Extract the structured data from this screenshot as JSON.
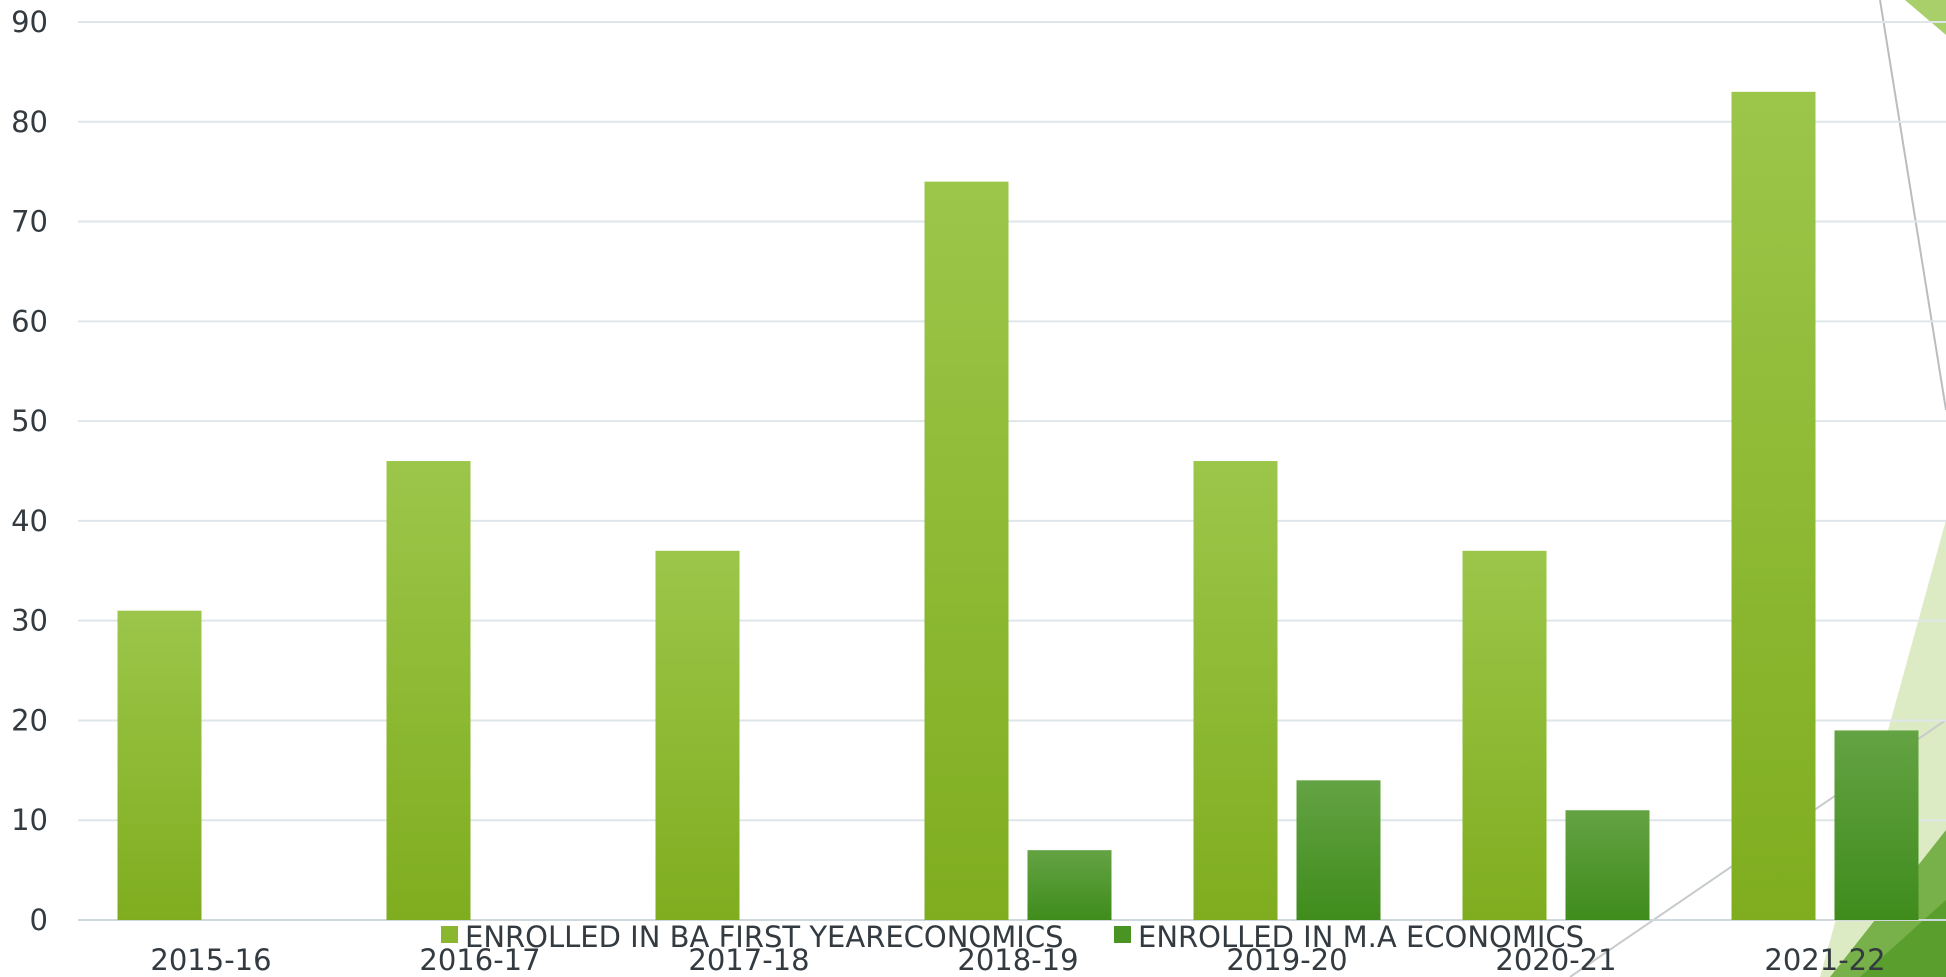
{
  "chart_data": {
    "type": "bar",
    "categories": [
      "2015-16",
      "2016-17",
      "2017-18",
      "2018-19",
      "2019-20",
      "2020-21",
      "2021-22"
    ],
    "series": [
      {
        "name": "ENROLLED IN BA FIRST YEARECONOMICS",
        "values": [
          31,
          46,
          37,
          74,
          46,
          37,
          83
        ],
        "color": "#8ab630"
      },
      {
        "name": "ENROLLED IN M.A ECONOMICS",
        "values": [
          null,
          null,
          null,
          7,
          14,
          11,
          19
        ],
        "color": "#4a9424"
      }
    ],
    "ylim": [
      0,
      90
    ],
    "yticks": [
      "0",
      "10",
      "20",
      "30",
      "40",
      "50",
      "60",
      "70",
      "80",
      "90"
    ],
    "grid": true,
    "legend_position": "bottom"
  }
}
